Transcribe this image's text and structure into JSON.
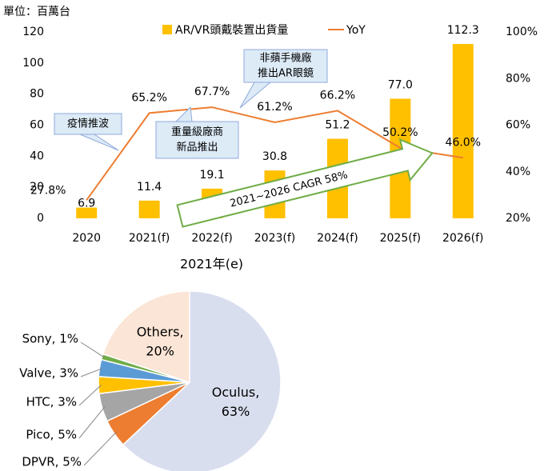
{
  "chart_data": [
    {
      "type": "bar",
      "unit_label": "單位：百萬台",
      "x_label": "2021年(e)",
      "categories": [
        "2020",
        "2021(f)",
        "2022(f)",
        "2023(f)",
        "2024(f)",
        "2025(f)",
        "2026(f)"
      ],
      "series": [
        {
          "name": "AR/VR頭戴裝置出貨量",
          "color": "#FFC000",
          "values": [
            6.9,
            11.4,
            19.1,
            30.8,
            51.2,
            77.0,
            112.3
          ],
          "value_labels": [
            "6.9",
            "11.4",
            "19.1",
            "30.8",
            "51.2",
            "77.0",
            "112.3"
          ]
        },
        {
          "name": "YoY",
          "color": "#ED7D31",
          "type": "line",
          "axis": "y2",
          "values": [
            27.8,
            65.2,
            67.7,
            61.2,
            66.2,
            50.2,
            46.0
          ],
          "value_labels": [
            "27.8%",
            "65.2%",
            "67.7%",
            "61.2%",
            "66.2%",
            "50.2%",
            "46.0%"
          ]
        }
      ],
      "ylim": [
        0,
        120
      ],
      "yticks": [
        0,
        20,
        40,
        60,
        80,
        100,
        120
      ],
      "y2lim": [
        20,
        100
      ],
      "y2ticks": [
        {
          "value": 20,
          "label": "20%"
        },
        {
          "value": 40,
          "label": "40%"
        },
        {
          "value": 60,
          "label": "60%"
        },
        {
          "value": 80,
          "label": "80%"
        },
        {
          "value": 100,
          "label": "100%"
        }
      ],
      "annotations": [
        [
          "疫情推波"
        ],
        [
          "重量級廠商",
          "新品推出"
        ],
        [
          "非蘋手機廠",
          "推出AR眼鏡"
        ],
        [
          "2021~2026 CAGR 58%"
        ]
      ]
    },
    {
      "type": "pie",
      "values": [
        63,
        5,
        5,
        3,
        3,
        1,
        20
      ],
      "value_labels": [
        "Oculus, 63%",
        "DPVR, 5%",
        "Pico, 5%",
        "HTC, 3%",
        "Valve, 3%",
        "Sony, 1%",
        "Others, 20%"
      ],
      "colors": [
        "#D9DEEF",
        "#ED7D31",
        "#A5A5A5",
        "#FFC000",
        "#5B9BD5",
        "#70AD47",
        "#FBE5D6"
      ]
    }
  ]
}
